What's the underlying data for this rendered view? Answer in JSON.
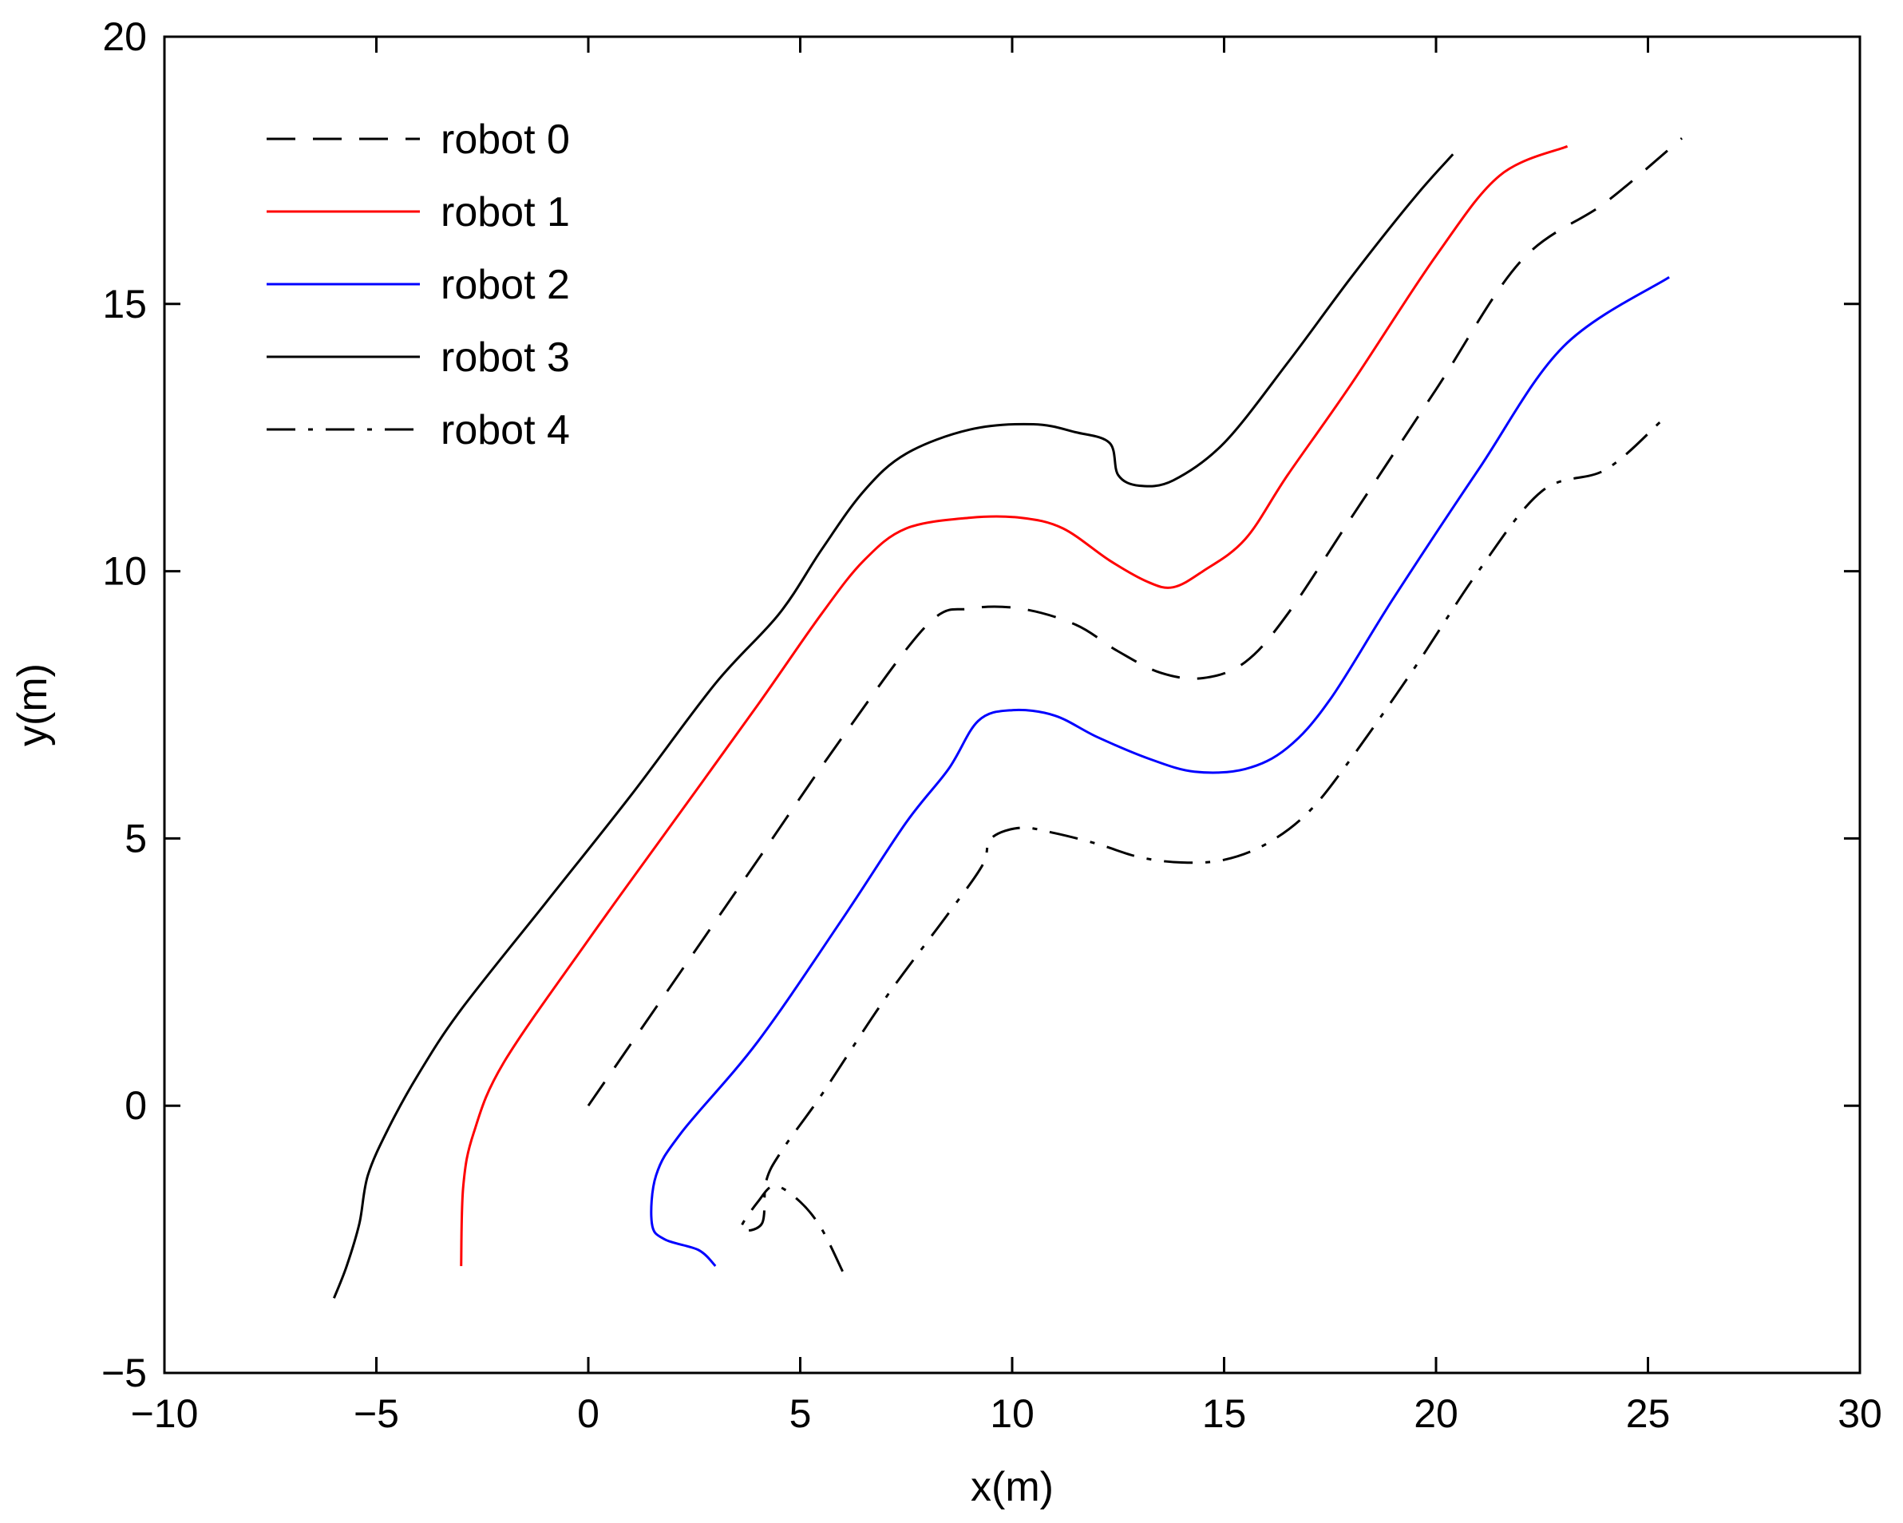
{
  "chart_data": {
    "type": "line",
    "title": "",
    "xlabel": "x(m)",
    "ylabel": "y(m)",
    "xlim": [
      -10,
      30
    ],
    "ylim": [
      -5,
      20
    ],
    "xticks": [
      -10,
      -5,
      0,
      5,
      10,
      15,
      20,
      25,
      30
    ],
    "yticks": [
      -5,
      0,
      5,
      10,
      15,
      20
    ],
    "xtick_labels": [
      "−10",
      "−5",
      "0",
      "5",
      "10",
      "15",
      "20",
      "25",
      "30"
    ],
    "ytick_labels": [
      "−5",
      "0",
      "5",
      "10",
      "15",
      "20"
    ],
    "grid": false,
    "legend_position": "top-left",
    "series": [
      {
        "name": "robot 0",
        "color": "#000000",
        "style": "dashed",
        "points": [
          [
            0,
            0
          ],
          [
            2,
            2.3
          ],
          [
            4,
            4.6
          ],
          [
            6,
            6.9
          ],
          [
            8,
            9.0
          ],
          [
            9,
            9.3
          ],
          [
            10.2,
            9.3
          ],
          [
            11.5,
            9.0
          ],
          [
            12.5,
            8.5
          ],
          [
            13.5,
            8.1
          ],
          [
            14.5,
            8.0
          ],
          [
            15.5,
            8.3
          ],
          [
            16.5,
            9.2
          ],
          [
            18,
            11.0
          ],
          [
            20,
            13.4
          ],
          [
            22,
            15.8
          ],
          [
            24,
            16.9
          ],
          [
            25.8,
            18.1
          ]
        ]
      },
      {
        "name": "robot 1",
        "color": "#ff0000",
        "style": "solid",
        "points": [
          [
            -3,
            -3
          ],
          [
            -2.95,
            -1.5
          ],
          [
            -2.7,
            -0.5
          ],
          [
            -2,
            0.8
          ],
          [
            0,
            3.1
          ],
          [
            2,
            5.3
          ],
          [
            4,
            7.5
          ],
          [
            5.5,
            9.2
          ],
          [
            6.5,
            10.2
          ],
          [
            7.5,
            10.8
          ],
          [
            9,
            11.0
          ],
          [
            10.2,
            11.0
          ],
          [
            11.2,
            10.8
          ],
          [
            12.3,
            10.2
          ],
          [
            13.2,
            9.8
          ],
          [
            13.8,
            9.7
          ],
          [
            14.5,
            10.0
          ],
          [
            15.5,
            10.6
          ],
          [
            16.5,
            11.8
          ],
          [
            18,
            13.5
          ],
          [
            20,
            15.9
          ],
          [
            21.5,
            17.4
          ],
          [
            23.1,
            17.95
          ]
        ]
      },
      {
        "name": "robot 2",
        "color": "#0000ff",
        "style": "solid",
        "points": [
          [
            3,
            -3
          ],
          [
            2.6,
            -2.7
          ],
          [
            1.8,
            -2.5
          ],
          [
            1.5,
            -2.2
          ],
          [
            1.6,
            -1.3
          ],
          [
            2.2,
            -0.5
          ],
          [
            4,
            1.2
          ],
          [
            6,
            3.5
          ],
          [
            7.5,
            5.3
          ],
          [
            8.5,
            6.3
          ],
          [
            9.2,
            7.2
          ],
          [
            10,
            7.4
          ],
          [
            11,
            7.3
          ],
          [
            12,
            6.9
          ],
          [
            13.2,
            6.5
          ],
          [
            14.3,
            6.25
          ],
          [
            15.5,
            6.3
          ],
          [
            16.5,
            6.7
          ],
          [
            17.5,
            7.6
          ],
          [
            19,
            9.5
          ],
          [
            21,
            11.9
          ],
          [
            23,
            14.2
          ],
          [
            25.5,
            15.5
          ]
        ]
      },
      {
        "name": "robot 3",
        "color": "#000000",
        "style": "solid",
        "points": [
          [
            -6,
            -3.6
          ],
          [
            -5.7,
            -3.0
          ],
          [
            -5.4,
            -2.2
          ],
          [
            -5.2,
            -1.3
          ],
          [
            -4.7,
            -0.4
          ],
          [
            -4,
            0.6
          ],
          [
            -3,
            1.8
          ],
          [
            -1,
            3.8
          ],
          [
            1,
            5.8
          ],
          [
            3,
            7.9
          ],
          [
            4.5,
            9.2
          ],
          [
            5.5,
            10.4
          ],
          [
            6.5,
            11.5
          ],
          [
            7.5,
            12.2
          ],
          [
            9,
            12.65
          ],
          [
            10.5,
            12.75
          ],
          [
            11.5,
            12.6
          ],
          [
            12.3,
            12.4
          ],
          [
            12.5,
            11.8
          ],
          [
            13,
            11.6
          ],
          [
            13.8,
            11.7
          ],
          [
            15,
            12.4
          ],
          [
            16.5,
            13.9
          ],
          [
            18,
            15.5
          ],
          [
            19.5,
            17.0
          ],
          [
            20.4,
            17.8
          ]
        ]
      },
      {
        "name": "robot 4",
        "color": "#000000",
        "style": "dashdot",
        "points": [
          [
            6,
            -3.1
          ],
          [
            5.5,
            -2.3
          ],
          [
            5,
            -1.8
          ],
          [
            4.4,
            -1.5
          ],
          [
            4,
            -1.8
          ],
          [
            3.6,
            -2.3
          ],
          [
            4.1,
            -2.2
          ],
          [
            4.2,
            -1.4
          ],
          [
            4.6,
            -0.8
          ],
          [
            5.5,
            0.2
          ],
          [
            7,
            2
          ],
          [
            8.5,
            3.6
          ],
          [
            9.3,
            4.5
          ],
          [
            9.5,
            5.0
          ],
          [
            10.2,
            5.2
          ],
          [
            11,
            5.1
          ],
          [
            12,
            4.9
          ],
          [
            13,
            4.65
          ],
          [
            14,
            4.55
          ],
          [
            15,
            4.6
          ],
          [
            16,
            4.9
          ],
          [
            17,
            5.5
          ],
          [
            18,
            6.5
          ],
          [
            19.5,
            8.2
          ],
          [
            21,
            10.0
          ],
          [
            22.5,
            11.5
          ],
          [
            24,
            11.9
          ],
          [
            25.3,
            12.8
          ]
        ]
      }
    ]
  }
}
